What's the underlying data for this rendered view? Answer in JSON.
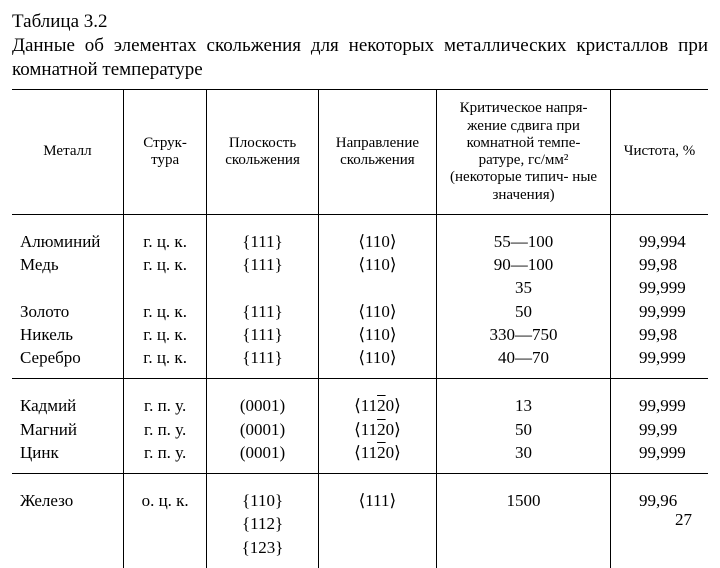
{
  "caption": {
    "number": "Таблица 3.2",
    "text": "Данные об элементах скольжения для некоторых металлических кристаллов при комнатной температуре"
  },
  "page_number": "27",
  "table": {
    "headers": {
      "metal": "Металл",
      "structure": "Струк-\nтура",
      "plane": "Плоскость скольжения",
      "direction": "Направление скольжения",
      "stress": "Критическое напря-\nжение сдвига при комнатной темпе-\nратуре, гс/мм²\n(некоторые типич-\nные значения)",
      "purity": "Чистота, %"
    },
    "groups": [
      {
        "rows": [
          {
            "metal": "Алюминий",
            "structure": "г. ц. к.",
            "plane": "{111}",
            "direction": "⟨110⟩",
            "stress": "55—100",
            "purity": "99,994"
          },
          {
            "metal": "Медь",
            "structure": "г. ц. к.",
            "plane": "{111}",
            "direction": "⟨110⟩",
            "stress": "90—100",
            "purity": "99,98"
          },
          {
            "metal": "",
            "structure": "",
            "plane": "",
            "direction": "",
            "stress": "35",
            "purity": "99,999"
          },
          {
            "metal": "Золото",
            "structure": "г. ц. к.",
            "plane": "{111}",
            "direction": "⟨110⟩",
            "stress": "50",
            "purity": "99,999"
          },
          {
            "metal": "Никель",
            "structure": "г. ц. к.",
            "plane": "{111}",
            "direction": "⟨110⟩",
            "stress": "330—750",
            "purity": "99,98"
          },
          {
            "metal": "Серебро",
            "structure": "г. ц. к.",
            "plane": "{111}",
            "direction": "⟨110⟩",
            "stress": "40—70",
            "purity": "99,999"
          }
        ]
      },
      {
        "rows": [
          {
            "metal": "Кадмий",
            "structure": "г. п. у.",
            "plane": "(0001)",
            "direction_html": "⟨11<span class=\"ov\">2</span>0⟩",
            "stress": "13",
            "purity": "99,999"
          },
          {
            "metal": "Магний",
            "structure": "г. п. у.",
            "plane": "(0001)",
            "direction_html": "⟨11<span class=\"ov\">2</span>0⟩",
            "stress": "50",
            "purity": "99,99"
          },
          {
            "metal": "Цинк",
            "structure": "г. п. у.",
            "plane": "(0001)",
            "direction_html": "⟨11<span class=\"ov\">2</span>0⟩",
            "stress": "30",
            "purity": "99,999"
          }
        ]
      },
      {
        "rows": [
          {
            "metal": "Железо",
            "structure": "о. ц. к.",
            "plane": "{110}",
            "direction": "⟨111⟩",
            "stress": "1500",
            "purity": "99,96"
          },
          {
            "metal": "",
            "structure": "",
            "plane": "{112}",
            "direction": "",
            "stress": "",
            "purity": ""
          },
          {
            "metal": "",
            "structure": "",
            "plane": "{123}",
            "direction": "",
            "stress": "",
            "purity": ""
          }
        ]
      }
    ]
  },
  "style": {
    "font_family": "Times New Roman, serif",
    "caption_fontsize_pt": 14,
    "header_fontsize_pt": 11,
    "cell_fontsize_pt": 13,
    "border_color": "#000000",
    "background_color": "#ffffff",
    "text_color": "#000000"
  }
}
